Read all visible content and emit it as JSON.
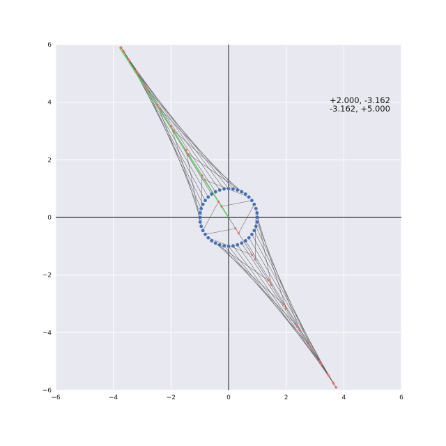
{
  "chart_data": {
    "type": "scatter",
    "title": "",
    "xlabel": "",
    "ylabel": "",
    "xlim": [
      -6,
      6
    ],
    "ylim": [
      -6,
      6
    ],
    "xticks": [
      -6,
      -4,
      -2,
      0,
      2,
      4,
      6
    ],
    "yticks": [
      -6,
      -4,
      -2,
      0,
      2,
      4,
      6
    ],
    "xtick_labels": [
      "−6",
      "−4",
      "−2",
      "0",
      "2",
      "4",
      "6"
    ],
    "ytick_labels": [
      "−6",
      "−4",
      "−2",
      "0",
      "2",
      "4",
      "6"
    ],
    "grid": true,
    "axis_lines_through_origin": true,
    "matrix": [
      [
        2.0,
        -3.162
      ],
      [
        -3.162,
        5.0
      ]
    ],
    "annotation_lines": [
      "+2.000,  -3.162",
      "-3.162,  +5.000"
    ],
    "unit_circle_points": 40,
    "highlighted_vector": {
      "from": [
        0,
        0
      ],
      "to": [
        -3.79,
        5.91
      ]
    },
    "colors": {
      "background": "#e8e8f0",
      "grid": "#ffffff",
      "circle_points": "#4a6fb0",
      "transformed_points": "#e07070",
      "connector_lines": "#555555",
      "highlight": "#66cc66",
      "axes": "#000000"
    }
  }
}
